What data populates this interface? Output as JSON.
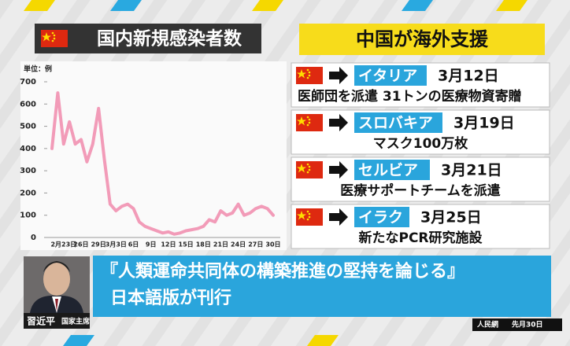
{
  "chart_data": {
    "type": "line",
    "title": "国内新規感染者数",
    "unit_label": "単位：例",
    "categories": [
      null,
      null,
      "2月23日",
      null,
      null,
      "26日",
      null,
      null,
      "29日",
      null,
      null,
      "3月3日",
      null,
      null,
      "6日",
      null,
      null,
      "9日",
      null,
      null,
      "12日",
      null,
      null,
      "15日",
      null,
      null,
      "18日",
      null,
      null,
      "21日",
      null,
      null,
      "24日",
      null,
      null,
      "27日",
      null,
      null,
      "30日"
    ],
    "values": [
      400,
      650,
      420,
      520,
      420,
      440,
      340,
      420,
      580,
      350,
      150,
      120,
      140,
      150,
      130,
      70,
      50,
      40,
      30,
      20,
      25,
      15,
      20,
      30,
      35,
      40,
      50,
      80,
      70,
      120,
      100,
      110,
      150,
      100,
      110,
      130,
      140,
      130,
      100
    ],
    "color": "#f29bb8",
    "ylim": [
      0,
      700
    ],
    "yticks": [
      0,
      100,
      200,
      300,
      400,
      500,
      600,
      700
    ]
  },
  "aid_panel": {
    "title": "中国が海外支援",
    "items": [
      {
        "country": "イタリア",
        "date": "3月12日",
        "detail": "医師団を派遣 31トンの医療物資寄贈"
      },
      {
        "country": "スロバキア",
        "date": "3月19日",
        "detail": "マスク100万枚"
      },
      {
        "country": "セルビア",
        "date": "3月21日",
        "detail": "医療サポートチームを派遣"
      },
      {
        "country": "イラク",
        "date": "3月25日",
        "detail": "新たなPCR研究施設"
      }
    ]
  },
  "caption": {
    "lines": [
      "『人類運命共同体の構築推進の堅持を論じる』",
      "日本語版が刊行"
    ]
  },
  "person": {
    "name": "習近平",
    "role": "国家主席"
  },
  "source": {
    "outlet": "人民網",
    "date": "先月30日"
  }
}
